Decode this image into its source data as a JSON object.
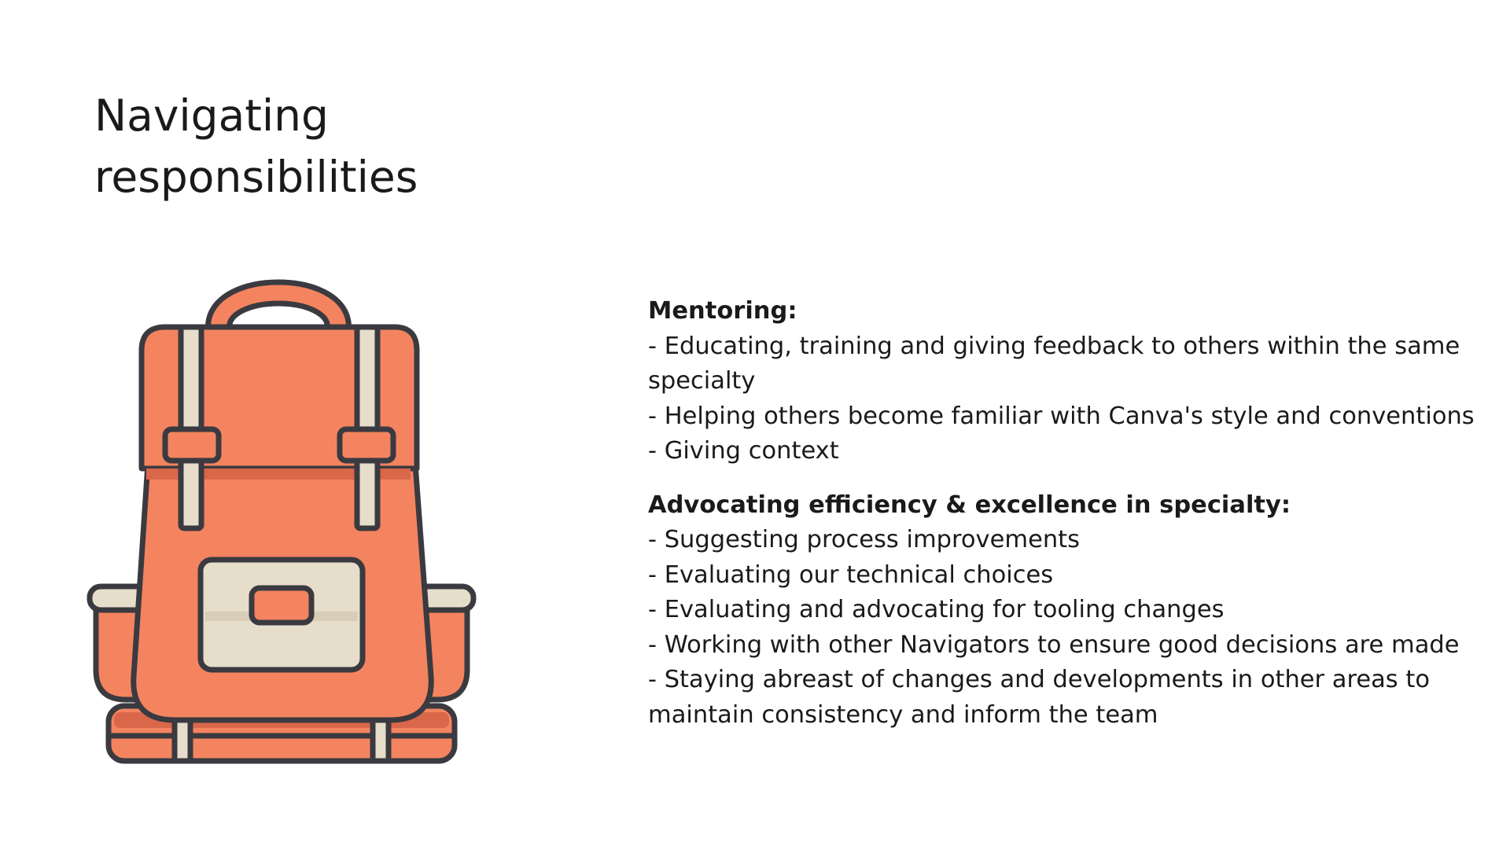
{
  "slide": {
    "title_line1": "Navigating",
    "title_line2": "responsibilities",
    "illustration_icon": "backpack-icon",
    "colors": {
      "backpack_orange": "#f4845f",
      "backpack_shadow": "#d9674a",
      "strap_beige": "#e6ddcb",
      "outline": "#3a3a40"
    },
    "sections": [
      {
        "heading": "Mentoring:",
        "items": [
          "- Educating, training and giving feedback to others within the same specialty",
          "- Helping others become familiar with Canva's style and conventions",
          "- Giving context"
        ]
      },
      {
        "heading": "Advocating efficiency & excellence in specialty:",
        "items": [
          "- Suggesting process improvements",
          "- Evaluating our technical choices",
          "- Evaluating and advocating for tooling changes",
          "- Working with other Navigators to ensure good decisions are made",
          "- Staying abreast of changes and developments in other areas to maintain consistency and inform the team"
        ]
      }
    ]
  }
}
